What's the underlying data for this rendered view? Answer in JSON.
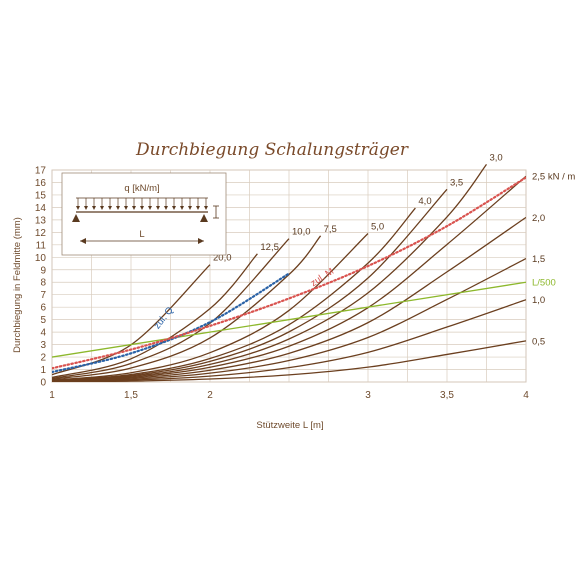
{
  "chart_data": {
    "type": "line",
    "title": "Durchbiegung Schalungsträger",
    "xlabel": "Stützweite L [m]",
    "ylabel": "Durchbiegung in Feldmitte (mm)",
    "xlim": [
      1,
      4
    ],
    "ylim": [
      0,
      17
    ],
    "x_ticks": [
      "1",
      "1,5",
      "2",
      "3",
      "3,5",
      "4"
    ],
    "x_tick_values": [
      1,
      1.5,
      2,
      3,
      3.5,
      4
    ],
    "y_ticks": [
      "0",
      "1",
      "2",
      "3",
      "4",
      "5",
      "6",
      "7",
      "8",
      "9",
      "10",
      "11",
      "12",
      "13",
      "14",
      "15",
      "16",
      "17"
    ],
    "grid": true,
    "load_curve_color": "#6b3f1f",
    "inset": {
      "load_label": "q [kN/m]",
      "span_label": "L"
    },
    "series": [
      {
        "name": "20,0",
        "label_text": "20,0",
        "color": "#6b3f1f",
        "x": [
          1,
          1.5,
          2
        ],
        "y": [
          0.59,
          2.98,
          9.41
        ]
      },
      {
        "name": "12,5",
        "label_text": "12,5",
        "color": "#6b3f1f",
        "x": [
          1,
          1.5,
          2,
          2.3
        ],
        "y": [
          0.37,
          1.86,
          5.88,
          10.28
        ]
      },
      {
        "name": "10,0",
        "label_text": "10,0",
        "color": "#6b3f1f",
        "x": [
          1,
          1.5,
          2,
          2.5
        ],
        "y": [
          0.29,
          1.49,
          4.71,
          11.49
        ]
      },
      {
        "name": "7,5",
        "label_text": "7,5",
        "color": "#6b3f1f",
        "x": [
          1,
          1.5,
          2,
          2.5,
          2.7
        ],
        "y": [
          0.22,
          1.12,
          3.53,
          8.62,
          11.72
        ]
      },
      {
        "name": "5,0",
        "label_text": "5,0",
        "color": "#6b3f1f",
        "x": [
          1,
          1.5,
          2,
          2.5,
          3
        ],
        "y": [
          0.15,
          0.74,
          2.35,
          5.74,
          11.91
        ]
      },
      {
        "name": "4,0",
        "label_text": "4,0",
        "color": "#6b3f1f",
        "x": [
          1,
          1.5,
          2,
          2.5,
          3,
          3.3
        ],
        "y": [
          0.12,
          0.6,
          1.88,
          4.6,
          9.53,
          13.95
        ]
      },
      {
        "name": "3,5",
        "label_text": "3,5",
        "color": "#6b3f1f",
        "x": [
          1,
          1.5,
          2,
          2.5,
          3,
          3.5
        ],
        "y": [
          0.1,
          0.52,
          1.65,
          4.02,
          8.34,
          15.45
        ]
      },
      {
        "name": "3,0",
        "label_text": "3,0",
        "color": "#6b3f1f",
        "x": [
          1,
          1.5,
          2,
          2.5,
          3,
          3.5,
          3.75
        ],
        "y": [
          0.09,
          0.45,
          1.41,
          3.45,
          7.15,
          13.24,
          17.45
        ]
      },
      {
        "name": "2,5 kN / m",
        "label_text": "2,5 kN / m",
        "color": "#6b3f1f",
        "x": [
          1,
          1.5,
          2,
          2.5,
          3,
          3.5,
          4
        ],
        "y": [
          0.07,
          0.37,
          1.18,
          2.87,
          5.96,
          11.03,
          16.5
        ]
      },
      {
        "name": "2,0",
        "label_text": "2,0",
        "color": "#6b3f1f",
        "x": [
          1,
          1.5,
          2,
          2.5,
          3,
          3.5,
          4
        ],
        "y": [
          0.06,
          0.3,
          0.94,
          2.3,
          4.76,
          8.83,
          13.2
        ]
      },
      {
        "name": "1,5",
        "label_text": "1,5",
        "color": "#6b3f1f",
        "x": [
          1,
          1.5,
          2,
          2.5,
          3,
          3.5,
          4
        ],
        "y": [
          0.04,
          0.22,
          0.71,
          1.72,
          3.57,
          6.62,
          9.9
        ]
      },
      {
        "name": "1,0",
        "label_text": "1,0",
        "color": "#6b3f1f",
        "x": [
          1,
          1.5,
          2,
          2.5,
          3,
          3.5,
          4
        ],
        "y": [
          0.03,
          0.15,
          0.47,
          1.15,
          2.38,
          4.41,
          6.6
        ]
      },
      {
        "name": "0,5",
        "label_text": "0,5",
        "color": "#6b3f1f",
        "x": [
          1,
          1.5,
          2,
          2.5,
          3,
          3.5,
          4
        ],
        "y": [
          0.01,
          0.07,
          0.24,
          0.57,
          1.19,
          2.21,
          3.3
        ]
      },
      {
        "name": "L/500",
        "label_text": "L/500",
        "color": "#8db82c",
        "x": [
          1,
          4
        ],
        "y": [
          2.0,
          8.0
        ]
      },
      {
        "name": "zul. Q",
        "label_text": "zul. Q",
        "color": "#2a62a6",
        "dash": "dotted",
        "x": [
          1,
          1.5,
          2,
          2.5
        ],
        "y": [
          0.8,
          2.3,
          4.8,
          8.7
        ]
      },
      {
        "name": "zul. M",
        "label_text": "zul. M",
        "color": "#d9534f",
        "dash": "dotted",
        "x": [
          1,
          1.5,
          2,
          2.5,
          3,
          3.5,
          4
        ],
        "y": [
          1.1,
          2.6,
          4.5,
          6.7,
          9.3,
          12.5,
          16.4
        ]
      }
    ]
  }
}
